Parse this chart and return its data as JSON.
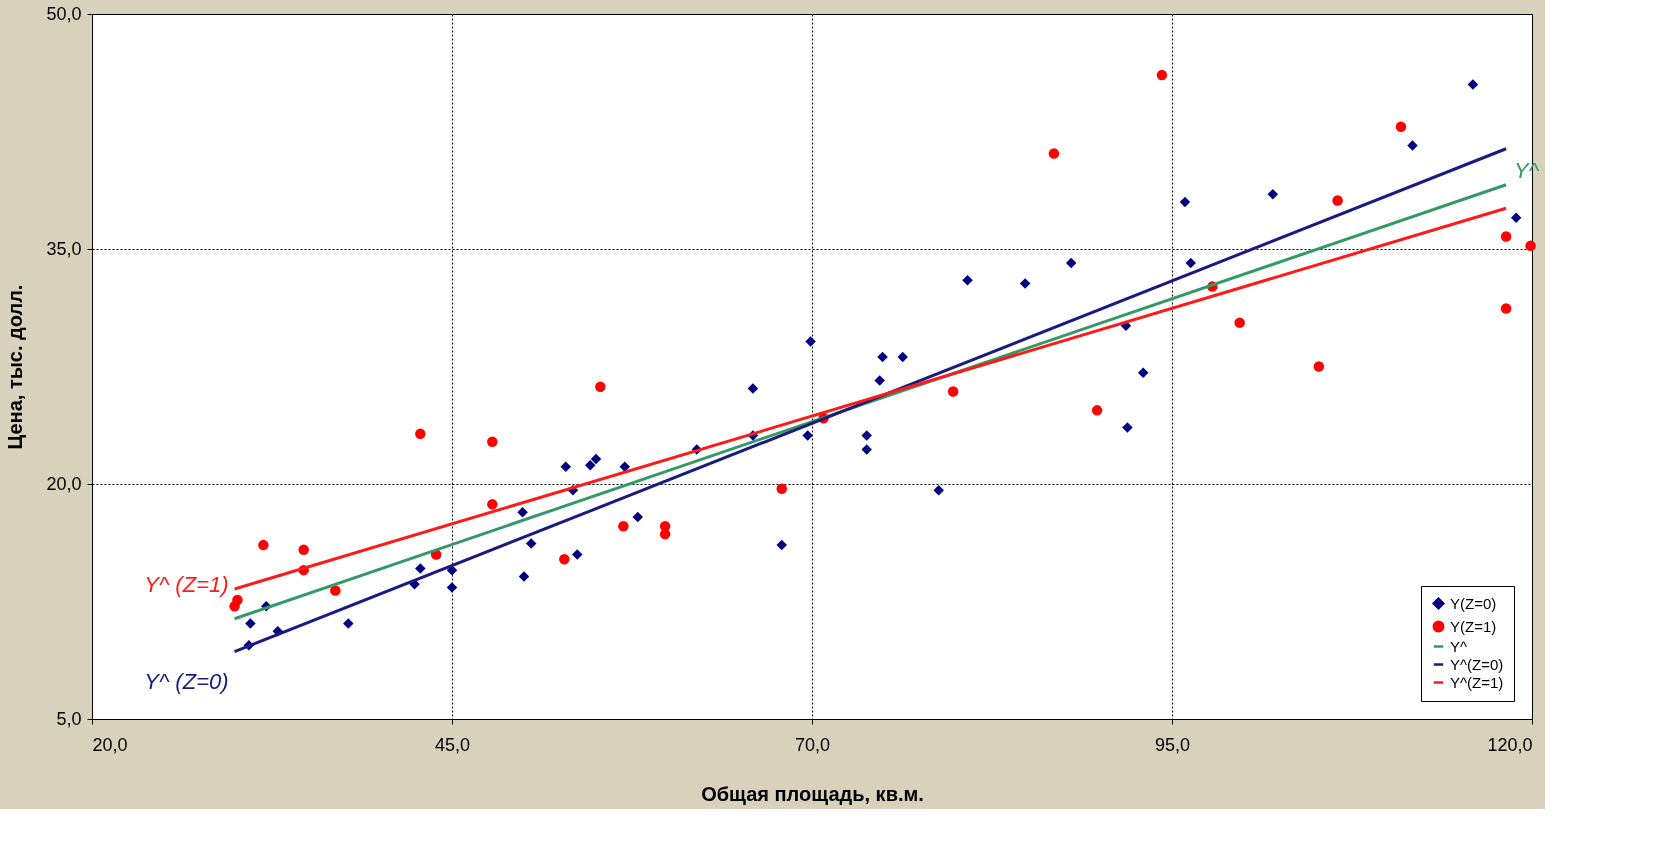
{
  "chart_data": {
    "type": "scatter",
    "xlabel": "Общая площадь, кв.м.",
    "ylabel": "Цена, тыс. долл.",
    "xlim": [
      20,
      120
    ],
    "ylim": [
      5,
      50
    ],
    "xticks": [
      {
        "value": 20,
        "label": "20,0"
      },
      {
        "value": 45,
        "label": "45,0"
      },
      {
        "value": 70,
        "label": "70,0"
      },
      {
        "value": 95,
        "label": "95,0"
      },
      {
        "value": 120,
        "label": "120,0"
      }
    ],
    "yticks": [
      {
        "value": 5,
        "label": "5,0"
      },
      {
        "value": 20,
        "label": "20,0"
      },
      {
        "value": 35,
        "label": "35,0"
      },
      {
        "value": 50,
        "label": "50,0"
      }
    ],
    "grid": true,
    "legend": "bottom right",
    "series": [
      {
        "name": "Y(Z=0)",
        "color": "#000080",
        "marker": "diamond",
        "x": [
          31.0,
          30.9,
          32.1,
          32.9,
          37.8,
          42.4,
          42.8,
          45.0,
          45.0,
          49.9,
          50.0,
          50.5,
          52.9,
          53.4,
          53.7,
          54.6,
          55.0,
          57.0,
          57.9,
          62.0,
          65.9,
          65.9,
          67.9,
          69.9,
          69.7,
          73.8,
          73.8,
          74.7,
          74.9,
          76.3,
          78.8,
          80.8,
          84.8,
          88.0,
          91.8,
          91.9,
          93.0,
          95.9,
          96.3,
          102.0,
          111.7,
          115.9,
          118.9
        ],
        "values": [
          11.1,
          9.7,
          12.2,
          10.6,
          11.1,
          13.6,
          14.6,
          13.4,
          14.5,
          18.2,
          14.1,
          16.2,
          21.1,
          19.6,
          15.5,
          21.2,
          21.6,
          21.1,
          17.9,
          22.2,
          26.1,
          23.1,
          16.1,
          29.1,
          23.1,
          23.1,
          22.2,
          26.6,
          28.1,
          28.1,
          19.6,
          33.0,
          32.8,
          34.1,
          30.1,
          23.6,
          27.1,
          38.0,
          34.1,
          38.5,
          41.6,
          45.5,
          37.0
        ]
      },
      {
        "name": "Y(Z=1)",
        "color": "#ff0000",
        "marker": "circle",
        "x": [
          30.1,
          29.9,
          31.9,
          34.7,
          34.7,
          36.9,
          42.8,
          43.9,
          47.8,
          47.8,
          52.8,
          55.3,
          56.9,
          59.8,
          59.8,
          67.9,
          70.8,
          79.8,
          86.8,
          89.8,
          94.3,
          97.8,
          99.7,
          105.2,
          106.5,
          110.9,
          118.2,
          118.2,
          119.9
        ],
        "values": [
          12.6,
          12.2,
          16.1,
          15.8,
          14.5,
          13.2,
          23.2,
          15.5,
          22.7,
          18.7,
          15.2,
          26.2,
          17.3,
          17.3,
          16.8,
          19.7,
          24.2,
          25.9,
          41.1,
          24.7,
          46.1,
          32.6,
          30.3,
          27.5,
          38.1,
          42.8,
          35.8,
          31.2,
          35.2
        ]
      },
      {
        "type": "line",
        "name": "Y^",
        "color": "#339966",
        "marker": "none",
        "x": [
          29.9,
          118.2
        ],
        "values": [
          11.4,
          39.1
        ]
      },
      {
        "type": "line",
        "name": "Y^(Z=0)",
        "color": "#1a1a80",
        "marker": "none",
        "x": [
          29.9,
          118.2
        ],
        "values": [
          9.3,
          41.4
        ]
      },
      {
        "type": "line",
        "name": "Y^(Z=1)",
        "color": "#ff1a1a",
        "marker": "none",
        "x": [
          29.9,
          118.2
        ],
        "values": [
          13.3,
          37.6
        ]
      }
    ],
    "annotations": [
      "Y^ (Z=1)",
      "Y^ (Z=0)",
      "Y^"
    ]
  }
}
